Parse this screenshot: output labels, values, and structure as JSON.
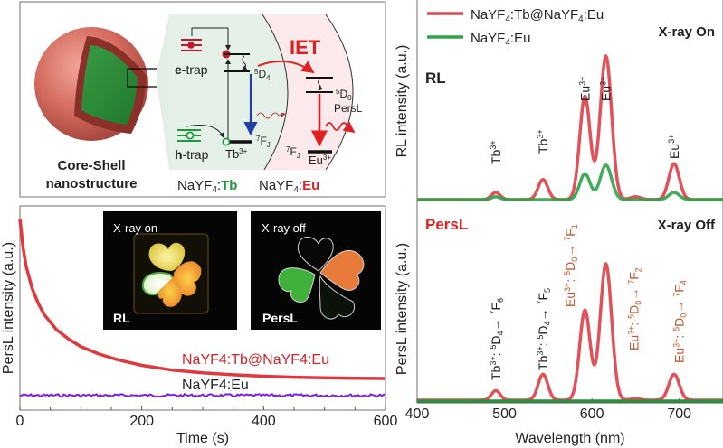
{
  "schematic": {
    "core_shell_label_1": "Core-Shell",
    "core_shell_label_2": "nanostructure",
    "e_trap_bold": "e",
    "e_trap_rest": "-trap",
    "h_trap_bold": "h",
    "h_trap_rest": "-trap",
    "tb_level_upper": "5D4",
    "tb_level_lower": "7FJ",
    "tb_ion": "Tb",
    "tb_ion_charge": "3+",
    "eu_level_upper": "5D0",
    "eu_level_lower": "7FJ",
    "eu_ion": "Eu",
    "eu_ion_charge": "3+",
    "iet_label": "IET",
    "persl_label": "PersL",
    "host_prefix": "NaYF",
    "host_sub": "4",
    "host_tb": "Tb",
    "host_eu": "Eu",
    "colors": {
      "tb": "#1f9a3a",
      "eu": "#e02020",
      "trap_e": "#c0182a",
      "trap_h": "#1f9a3a",
      "blue_arrow": "#1f3fa8"
    }
  },
  "chart_data": [
    {
      "type": "line",
      "id": "persl-decay",
      "xlabel": "Time (s)",
      "ylabel": "PersL intensity (a.u.)",
      "xlim": [
        0,
        600
      ],
      "ylim": [
        0,
        1
      ],
      "xticks": [
        0,
        200,
        400,
        600
      ],
      "series": [
        {
          "name": "NaYF4:Tb@NaYF4:Eu",
          "color": "#e0383e",
          "x": [
            0,
            5,
            10,
            20,
            30,
            40,
            60,
            80,
            100,
            130,
            160,
            200,
            250,
            300,
            350,
            400,
            450,
            500,
            550,
            600
          ],
          "y": [
            0.97,
            0.82,
            0.72,
            0.6,
            0.52,
            0.46,
            0.38,
            0.33,
            0.29,
            0.25,
            0.22,
            0.19,
            0.165,
            0.15,
            0.14,
            0.132,
            0.127,
            0.124,
            0.121,
            0.12
          ]
        },
        {
          "name": "NaYF4:Eu",
          "color": "#7a1fe8",
          "x": [
            0,
            600
          ],
          "y": [
            0.03,
            0.03
          ]
        }
      ],
      "annotations": [
        {
          "text": "NaYF4:Tb@NaYF4:Eu",
          "color": "#d0242c"
        },
        {
          "text": "NaYF4:Eu",
          "color": "#222222"
        }
      ],
      "insets": [
        {
          "title": "X-ray on",
          "label": "RL"
        },
        {
          "title": "X-ray off",
          "label": "PersL"
        }
      ]
    },
    {
      "type": "line",
      "id": "rl-spectrum",
      "title": "X-ray On",
      "panel_label": "RL",
      "ylabel": "RL intensity (a.u.)",
      "xlim": [
        400,
        750
      ],
      "ylim": [
        0,
        1
      ],
      "legend": "top-left",
      "series": [
        {
          "name": "NaYF4:Tb@NaYF4:Eu",
          "color": "#e0474f",
          "peaks": [
            [
              490,
              0.05,
              5
            ],
            [
              544,
              0.14,
              5.5
            ],
            [
              592,
              0.72,
              6
            ],
            [
              616,
              1.0,
              6.5
            ],
            [
              650,
              0.02,
              6
            ],
            [
              694,
              0.25,
              6
            ]
          ]
        },
        {
          "name": "NaYF4:Eu",
          "color": "#2ea34a",
          "peaks": [
            [
              490,
              0.02,
              5
            ],
            [
              592,
              0.18,
              6
            ],
            [
              616,
              0.24,
              6.5
            ],
            [
              694,
              0.05,
              6
            ]
          ]
        }
      ],
      "annotations": [
        "Tb3+",
        "Tb3+",
        "Eu3+",
        "Eu3+",
        "Eu3+"
      ]
    },
    {
      "type": "line",
      "id": "persl-spectrum",
      "title": "X-ray Off",
      "panel_label": "PersL",
      "xlabel": "Wavelength (nm)",
      "ylabel": "PersL intensity (a.u.)",
      "xlim": [
        400,
        750
      ],
      "xticks": [
        400,
        500,
        600,
        700
      ],
      "ylim": [
        0,
        1
      ],
      "series": [
        {
          "name": "NaYF4:Tb@NaYF4:Eu",
          "color": "#e0474f",
          "peaks": [
            [
              490,
              0.07,
              5
            ],
            [
              544,
              0.19,
              5.5
            ],
            [
              592,
              0.66,
              6
            ],
            [
              616,
              1.0,
              6.5
            ],
            [
              650,
              0.01,
              6
            ],
            [
              694,
              0.19,
              6
            ]
          ]
        },
        {
          "name": "NaYF4:Eu",
          "color": "#2e8f3e",
          "peaks": []
        }
      ],
      "annotations": [
        {
          "ion": "Tb",
          "from": "5D4",
          "to": "7F6",
          "color": "#222222"
        },
        {
          "ion": "Tb",
          "from": "5D4",
          "to": "7F5",
          "color": "#222222"
        },
        {
          "ion": "Eu",
          "from": "5D0",
          "to": "7F1",
          "color": "#c8562a"
        },
        {
          "ion": "Eu",
          "from": "5D0",
          "to": "7F2",
          "color": "#c8562a"
        },
        {
          "ion": "Eu",
          "from": "5D0",
          "to": "7F4",
          "color": "#c8562a"
        }
      ]
    }
  ]
}
